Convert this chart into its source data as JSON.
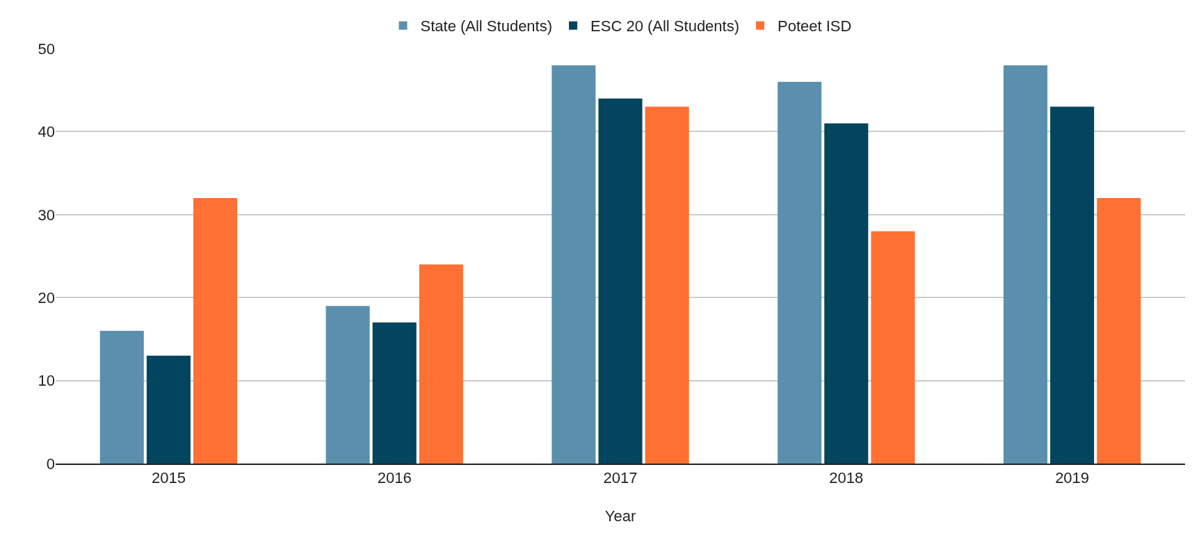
{
  "chart_data": {
    "type": "bar",
    "xlabel": "Year",
    "categories": [
      "2015",
      "2016",
      "2017",
      "2018",
      "2019"
    ],
    "series": [
      {
        "name": "State (All Students)",
        "color": "#5a90ae",
        "values": [
          16,
          19,
          48,
          46,
          48
        ]
      },
      {
        "name": "ESC 20 (All Students)",
        "color": "#03445e",
        "values": [
          13,
          17,
          44,
          41,
          43
        ]
      },
      {
        "name": "Poteet ISD",
        "color": "#ff7033",
        "values": [
          32,
          24,
          43,
          28,
          32
        ]
      }
    ],
    "ylim": [
      0,
      50
    ],
    "yticks": [
      0,
      10,
      20,
      30,
      40,
      50
    ],
    "grid": "y",
    "legend": "top"
  }
}
